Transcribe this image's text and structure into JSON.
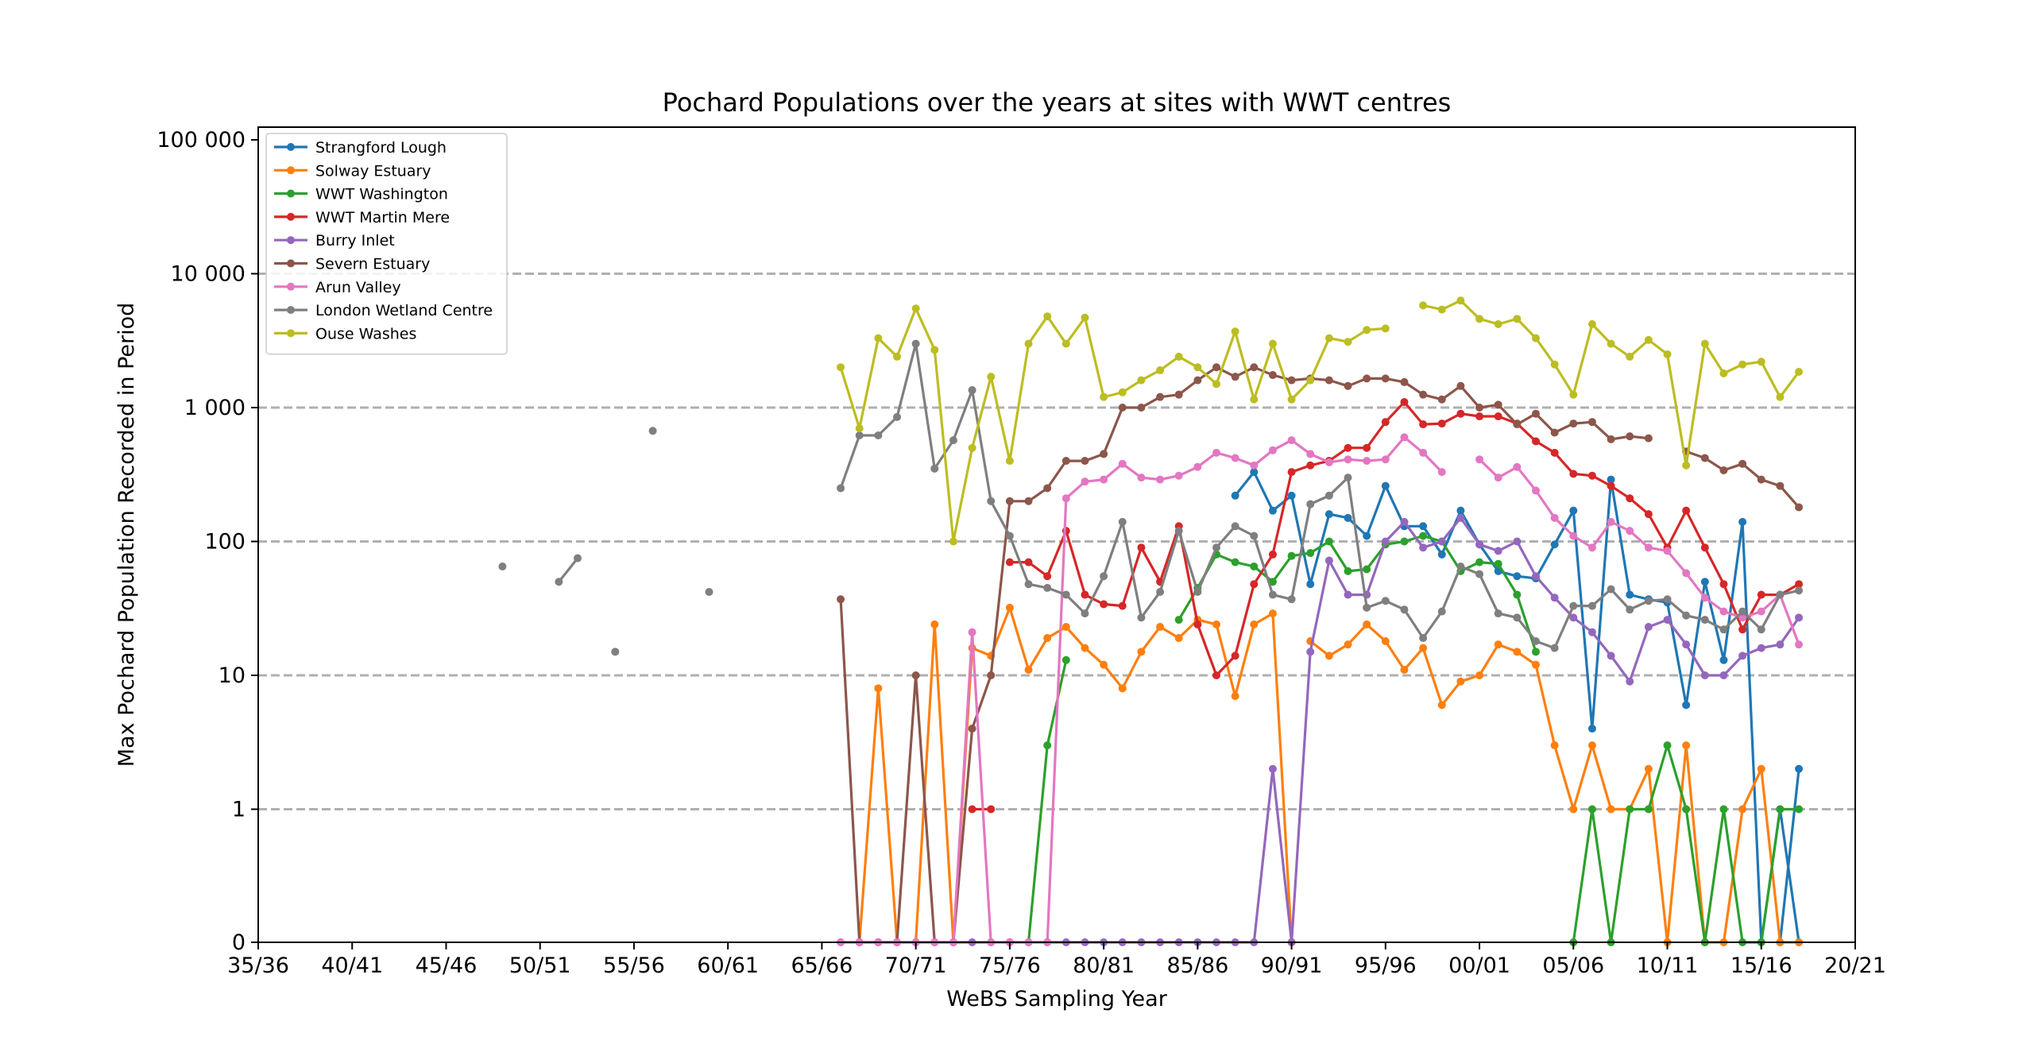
{
  "chart_data": {
    "type": "line",
    "title": "Pochard Populations over the years at sites with WWT centres",
    "xlabel": "WeBS Sampling Year",
    "ylabel": "Max Pochard Population Recorded in Period",
    "xlim": [
      1935,
      2020
    ],
    "y_scale": "symlog",
    "ylim": [
      0,
      100000
    ],
    "x_tick_values": [
      1935,
      1940,
      1945,
      1950,
      1955,
      1960,
      1965,
      1970,
      1975,
      1980,
      1985,
      1990,
      1995,
      2000,
      2005,
      2010,
      2015,
      2020
    ],
    "x_tick_labels": [
      "35/36",
      "40/41",
      "45/46",
      "50/51",
      "55/56",
      "60/61",
      "65/66",
      "70/71",
      "75/76",
      "80/81",
      "85/86",
      "90/91",
      "95/96",
      "00/01",
      "05/06",
      "10/11",
      "15/16",
      "20/21"
    ],
    "y_tick_values": [
      0,
      1,
      10,
      100,
      1000,
      10000,
      100000
    ],
    "y_tick_labels": [
      "0",
      "1",
      "10",
      "100",
      "1 000",
      "10 000",
      "100 000"
    ],
    "grid": "horizontal dashed",
    "legend_position": "upper-left",
    "series": [
      {
        "name": "Strangford Lough",
        "color": "#1f77b4",
        "x": [
          1987,
          1988,
          1989,
          1990,
          1991,
          1992,
          1993,
          1994,
          1995,
          1996,
          1997,
          1998,
          1999,
          2000,
          2001,
          2002,
          2003,
          2004,
          2005,
          2006,
          2007,
          2008,
          2009,
          2010,
          2011,
          2012,
          2013,
          2014,
          2015,
          2016,
          2017
        ],
        "y": [
          220,
          330,
          170,
          220,
          48,
          160,
          150,
          110,
          260,
          130,
          130,
          80,
          170,
          95,
          60,
          55,
          53,
          95,
          170,
          4,
          290,
          40,
          37,
          35,
          6,
          50,
          13,
          140,
          0,
          1,
          0
        ]
      },
      {
        "name": "",
        "color": "#1f77b4",
        "x": [
          2016,
          2017
        ],
        "y": [
          0,
          2
        ]
      },
      {
        "name": "Solway Estuary",
        "color": "#ff7f0e",
        "x": [
          1967,
          1968,
          1969,
          1970,
          1971,
          1972,
          1973,
          1974,
          1975,
          1976,
          1977,
          1978,
          1979,
          1980,
          1981,
          1982,
          1983,
          1984,
          1985,
          1986,
          1987,
          1988,
          1989,
          1990
        ],
        "y": [
          0,
          8,
          0,
          0,
          24,
          0,
          16,
          14,
          32,
          11,
          19,
          23,
          16,
          12,
          8,
          15,
          23,
          19,
          26,
          24,
          7,
          24,
          29,
          0
        ]
      },
      {
        "name": "",
        "color": "#ff7f0e",
        "x": [
          1991,
          1992,
          1993,
          1994,
          1995,
          1996,
          1997,
          1998,
          1999,
          2000,
          2001,
          2002,
          2003,
          2004,
          2005,
          2006,
          2007,
          2008,
          2009,
          2010,
          2011,
          2012,
          2013,
          2014,
          2015,
          2016,
          2017
        ],
        "y": [
          18,
          14,
          17,
          24,
          18,
          11,
          16,
          6,
          9,
          10,
          17,
          15,
          12,
          3,
          1,
          3,
          1,
          1,
          2,
          0,
          3,
          0,
          0,
          1,
          2,
          0,
          0
        ]
      },
      {
        "name": "WWT Washington",
        "color": "#2ca02c",
        "x": [
          1976,
          1977,
          1978
        ],
        "y": [
          0,
          3,
          13
        ]
      },
      {
        "name": "",
        "color": "#2ca02c",
        "x": [
          1984,
          1985,
          1986,
          1987,
          1988,
          1989,
          1990,
          1991,
          1992,
          1993,
          1994,
          1995,
          1996,
          1997,
          1998,
          1999,
          2000,
          2001,
          2002,
          2003
        ],
        "y": [
          26,
          45,
          80,
          70,
          65,
          50,
          78,
          82,
          100,
          60,
          62,
          95,
          100,
          110,
          100,
          60,
          70,
          68,
          40,
          15
        ]
      },
      {
        "name": "",
        "color": "#2ca02c",
        "x": [
          2005,
          2006,
          2007,
          2008,
          2009,
          2010,
          2011,
          2012,
          2013,
          2014,
          2015,
          2016,
          2017
        ],
        "y": [
          0,
          1,
          0,
          1,
          1,
          3,
          1,
          0,
          1,
          0,
          0,
          1,
          1
        ]
      },
      {
        "name": "WWT Martin Mere",
        "color": "#d62728",
        "x": [
          1973,
          1974
        ],
        "y": [
          1,
          1
        ]
      },
      {
        "name": "",
        "color": "#d62728",
        "x": [
          1975,
          1976,
          1977,
          1978,
          1979,
          1980,
          1981,
          1982,
          1983,
          1984,
          1985,
          1986,
          1987,
          1988,
          1989,
          1990,
          1991,
          1992,
          1993,
          1994,
          1995,
          1996,
          1997,
          1998,
          1999,
          2000,
          2001,
          2002,
          2003,
          2004,
          2005,
          2006,
          2007,
          2008,
          2009,
          2010,
          2011,
          2012,
          2013,
          2014,
          2015,
          2016,
          2017
        ],
        "y": [
          70,
          70,
          55,
          120,
          40,
          34,
          33,
          90,
          50,
          130,
          24,
          10,
          14,
          48,
          80,
          330,
          370,
          400,
          500,
          500,
          780,
          1100,
          750,
          760,
          900,
          860,
          860,
          760,
          560,
          460,
          320,
          310,
          260,
          210,
          160,
          90,
          170,
          90,
          48,
          22,
          40,
          40,
          48
        ]
      },
      {
        "name": "Burry Inlet",
        "color": "#9467bd",
        "x": [
          1966,
          1967,
          1968,
          1969,
          1970,
          1971,
          1972,
          1973,
          1974,
          1975,
          1976,
          1977,
          1978,
          1979,
          1980,
          1981,
          1982,
          1983,
          1984,
          1985,
          1986,
          1987,
          1988,
          1989,
          1990,
          1991,
          1992,
          1993,
          1994,
          1995,
          1996,
          1997,
          1998,
          1999,
          2000,
          2001,
          2002,
          2003,
          2004,
          2005,
          2006,
          2007,
          2008,
          2009,
          2010,
          2011,
          2012,
          2013,
          2014,
          2015,
          2016,
          2017
        ],
        "y": [
          0,
          0,
          0,
          0,
          0,
          0,
          0,
          0,
          0,
          0,
          0,
          0,
          0,
          0,
          0,
          0,
          0,
          0,
          0,
          0,
          0,
          0,
          0,
          2,
          0,
          15,
          72,
          40,
          40,
          100,
          140,
          90,
          100,
          150,
          95,
          85,
          100,
          55,
          38,
          27,
          21,
          14,
          9,
          23,
          26,
          17,
          10,
          10,
          14,
          16,
          17,
          27
        ]
      },
      {
        "name": "Severn Estuary",
        "color": "#8c564b",
        "x": [
          1966,
          1967,
          1968,
          1969,
          1970,
          1971,
          1972,
          1973,
          1974,
          1975,
          1976,
          1977,
          1978,
          1979,
          1980,
          1981,
          1982,
          1983,
          1984,
          1985,
          1986,
          1987,
          1988,
          1989,
          1990,
          1991,
          1992,
          1993,
          1994,
          1995,
          1996,
          1997,
          1998,
          1999,
          2000,
          2001,
          2002,
          2003,
          2004,
          2005,
          2006,
          2007,
          2008,
          2009
        ],
        "y": [
          37,
          0,
          0,
          0,
          10,
          0,
          0,
          4,
          10,
          200,
          200,
          250,
          400,
          400,
          450,
          1000,
          1000,
          1200,
          1250,
          1600,
          2000,
          1700,
          2000,
          1750,
          1600,
          1650,
          1600,
          1450,
          1650,
          1650,
          1550,
          1250,
          1150,
          1450,
          1000,
          1050,
          750,
          900,
          650,
          760,
          780,
          580,
          610,
          590
        ]
      },
      {
        "name": "",
        "color": "#8c564b",
        "x": [
          2011,
          2012,
          2013,
          2014,
          2015,
          2016,
          2017
        ],
        "y": [
          470,
          420,
          340,
          380,
          290,
          260,
          180
        ]
      },
      {
        "name": "Arun Valley",
        "color": "#e377c2",
        "x": [
          1966,
          1967,
          1968,
          1969,
          1970,
          1971,
          1972,
          1973,
          1974,
          1975,
          1976,
          1977,
          1978,
          1979,
          1980,
          1981,
          1982,
          1983,
          1984,
          1985,
          1986,
          1987,
          1988,
          1989,
          1990,
          1991,
          1992,
          1993,
          1994,
          1995,
          1996,
          1997,
          1998
        ],
        "y": [
          0,
          0,
          0,
          0,
          0,
          0,
          0,
          21,
          0,
          0,
          0,
          0,
          210,
          280,
          290,
          380,
          300,
          290,
          310,
          360,
          460,
          420,
          370,
          480,
          570,
          450,
          390,
          410,
          400,
          410,
          600,
          460,
          330
        ]
      },
      {
        "name": "",
        "color": "#e377c2",
        "x": [
          2000,
          2001,
          2002,
          2003,
          2004,
          2005,
          2006,
          2007,
          2008,
          2009,
          2010,
          2011,
          2012,
          2013,
          2014,
          2015,
          2016,
          2017
        ],
        "y": [
          410,
          300,
          360,
          240,
          150,
          110,
          90,
          140,
          120,
          90,
          85,
          58,
          38,
          30,
          27,
          30,
          40,
          17
        ]
      },
      {
        "name": "London Wetland Centre",
        "color": "#7f7f7f",
        "x": [
          1966,
          1967,
          1968,
          1969,
          1970,
          1971,
          1972,
          1973,
          1974,
          1975,
          1976,
          1977,
          1978,
          1979,
          1980,
          1981,
          1982,
          1983,
          1984,
          1985,
          1986,
          1987,
          1988,
          1989,
          1990,
          1991,
          1992,
          1993,
          1994,
          1995,
          1996,
          1997,
          1998,
          1999,
          2000,
          2001,
          2002,
          2003,
          2004,
          2005,
          2006,
          2007,
          2008,
          2009,
          2010,
          2011,
          2012,
          2013,
          2014,
          2015,
          2016,
          2017
        ],
        "y": [
          250,
          620,
          620,
          850,
          3000,
          350,
          570,
          1350,
          200,
          110,
          48,
          45,
          40,
          29,
          55,
          140,
          27,
          42,
          120,
          42,
          90,
          130,
          110,
          40,
          37,
          190,
          220,
          300,
          32,
          36,
          31,
          19,
          30,
          65,
          57,
          29,
          27,
          18,
          16,
          33,
          33,
          44,
          31,
          36,
          37,
          28,
          26,
          22,
          30,
          22,
          40,
          43
        ]
      },
      {
        "name": "",
        "color": "#7f7f7f",
        "x": [
          1948
        ],
        "y": [
          65
        ]
      },
      {
        "name": "",
        "color": "#7f7f7f",
        "x": [
          1951,
          1952
        ],
        "y": [
          50,
          75
        ]
      },
      {
        "name": "",
        "color": "#7f7f7f",
        "x": [
          1954
        ],
        "y": [
          15
        ]
      },
      {
        "name": "",
        "color": "#7f7f7f",
        "x": [
          1956
        ],
        "y": [
          670
        ]
      },
      {
        "name": "",
        "color": "#7f7f7f",
        "x": [
          1959
        ],
        "y": [
          42
        ]
      },
      {
        "name": "Ouse Washes",
        "color": "#bcbd22",
        "x": [
          1966,
          1967,
          1968,
          1969,
          1970,
          1971,
          1972,
          1973,
          1974,
          1975,
          1976,
          1977,
          1978,
          1979,
          1980,
          1981,
          1982,
          1983,
          1984,
          1985,
          1986,
          1987,
          1988,
          1989,
          1990,
          1991,
          1992,
          1993,
          1994,
          1995
        ],
        "y": [
          2000,
          700,
          3300,
          2400,
          5500,
          2700,
          100,
          500,
          1700,
          400,
          3000,
          4800,
          3000,
          4700,
          1200,
          1300,
          1600,
          1900,
          2400,
          2000,
          1500,
          3700,
          1150,
          3000,
          1150,
          1600,
          3300,
          3100,
          3800,
          3900
        ]
      },
      {
        "name": "",
        "color": "#bcbd22",
        "x": [
          1997,
          1998,
          1999,
          2000,
          2001,
          2002,
          2003,
          2004,
          2005,
          2006,
          2007,
          2008,
          2009,
          2010,
          2011,
          2012,
          2013,
          2014,
          2015,
          2016,
          2017
        ],
        "y": [
          5800,
          5400,
          6300,
          4600,
          4200,
          4600,
          3300,
          2100,
          1250,
          4200,
          3000,
          2400,
          3200,
          2500,
          370,
          3000,
          1800,
          2100,
          2200,
          1200,
          1850
        ]
      }
    ]
  }
}
